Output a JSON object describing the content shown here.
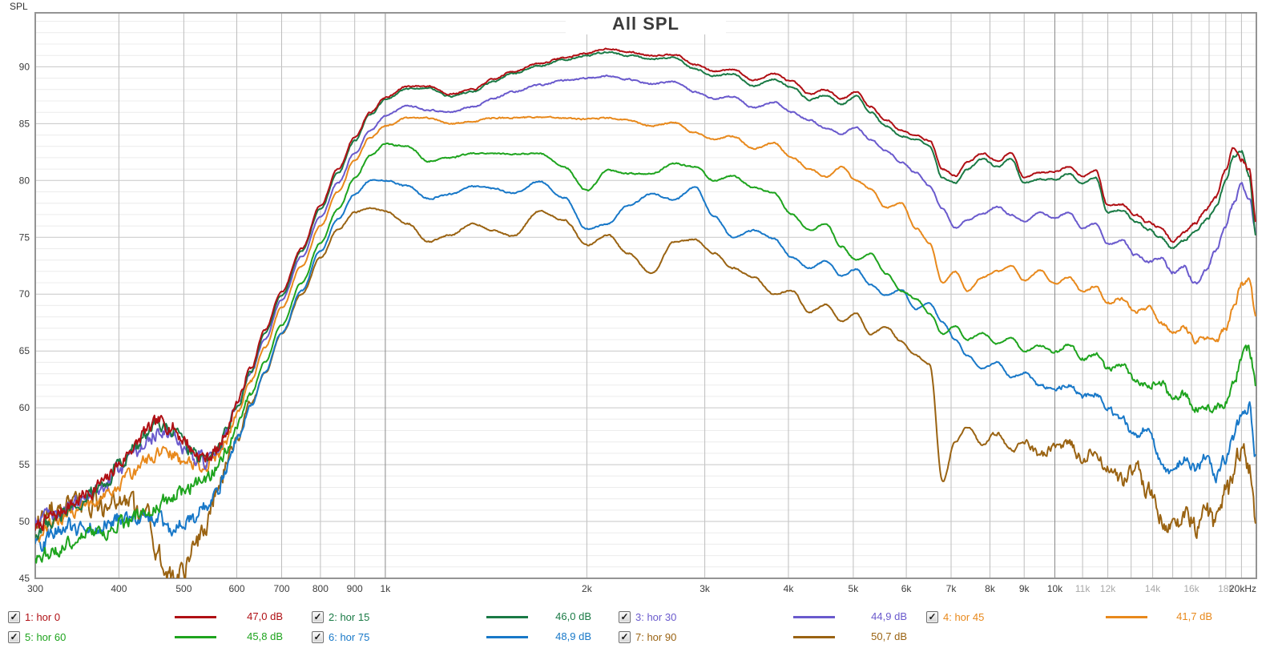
{
  "corner_label": "SPL",
  "chart_data": {
    "type": "line",
    "title": "All SPL",
    "ylabel": "SPL",
    "x_scale": "log",
    "xlim": [
      300,
      20000
    ],
    "ylim": [
      45,
      94.75
    ],
    "grid": "on",
    "legend_position": "bottom",
    "y_major_ticks": [
      45,
      50,
      55,
      60,
      65,
      70,
      75,
      80,
      85,
      90
    ],
    "x_ticks": [
      {
        "f": 300,
        "label": "300",
        "muted": false
      },
      {
        "f": 400,
        "label": "400",
        "muted": false
      },
      {
        "f": 500,
        "label": "500",
        "muted": false
      },
      {
        "f": 600,
        "label": "600",
        "muted": false
      },
      {
        "f": 700,
        "label": "700",
        "muted": false
      },
      {
        "f": 800,
        "label": "800",
        "muted": false
      },
      {
        "f": 900,
        "label": "900",
        "muted": false
      },
      {
        "f": 1000,
        "label": "1k",
        "muted": false
      },
      {
        "f": 2000,
        "label": "2k",
        "muted": false
      },
      {
        "f": 3000,
        "label": "3k",
        "muted": false
      },
      {
        "f": 4000,
        "label": "4k",
        "muted": false
      },
      {
        "f": 5000,
        "label": "5k",
        "muted": false
      },
      {
        "f": 6000,
        "label": "6k",
        "muted": false
      },
      {
        "f": 7000,
        "label": "7k",
        "muted": false
      },
      {
        "f": 8000,
        "label": "8k",
        "muted": false
      },
      {
        "f": 9000,
        "label": "9k",
        "muted": false
      },
      {
        "f": 10000,
        "label": "10k",
        "muted": false
      },
      {
        "f": 11000,
        "label": "11k",
        "muted": true
      },
      {
        "f": 12000,
        "label": "12k",
        "muted": true
      },
      {
        "f": 14000,
        "label": "14k",
        "muted": true
      },
      {
        "f": 16000,
        "label": "16k",
        "muted": true
      },
      {
        "f": 18000,
        "label": "18k",
        "muted": true
      },
      {
        "f": 20000,
        "label": "20kHz",
        "muted": false
      }
    ],
    "grid_freqs": [
      400,
      500,
      600,
      700,
      800,
      900,
      1000,
      2000,
      3000,
      4000,
      5000,
      6000,
      7000,
      8000,
      9000,
      10000,
      11000,
      12000,
      13000,
      14000,
      15000,
      16000,
      17000,
      18000,
      19000
    ],
    "dark_grid_freqs": [
      1000,
      10000
    ],
    "freqs": [
      300,
      320,
      340,
      360,
      380,
      400,
      420,
      440,
      460,
      480,
      500,
      520,
      540,
      560,
      580,
      600,
      630,
      660,
      700,
      750,
      800,
      850,
      900,
      950,
      1000,
      1080,
      1160,
      1250,
      1350,
      1450,
      1550,
      1700,
      1850,
      2000,
      2150,
      2300,
      2500,
      2700,
      2900,
      3100,
      3300,
      3550,
      3800,
      4050,
      4300,
      4550,
      4800,
      5050,
      5300,
      5600,
      5900,
      6200,
      6500,
      6800,
      7100,
      7400,
      7800,
      8200,
      8600,
      9000,
      9500,
      10000,
      10500,
      11000,
      11500,
      12000,
      12600,
      13200,
      13800,
      14400,
      15000,
      15600,
      16200,
      16800,
      17400,
      18000,
      18500,
      19000,
      19500,
      20000
    ],
    "series": [
      {
        "name": "hor 0",
        "color": "#b01015",
        "noise": [
          0.55,
          0.18,
          9000
        ],
        "spl": [
          49.5,
          50.5,
          51.5,
          52.5,
          53.5,
          55.0,
          56.5,
          58.0,
          58.8,
          58.3,
          57.2,
          56.0,
          55.6,
          56.2,
          58.0,
          60.5,
          63.5,
          66.8,
          70.2,
          74.0,
          77.8,
          81.0,
          83.8,
          86.0,
          87.3,
          88.3,
          88.3,
          87.6,
          88.0,
          88.9,
          89.6,
          90.3,
          90.8,
          91.2,
          91.6,
          91.3,
          91.0,
          91.1,
          90.2,
          89.6,
          89.8,
          88.8,
          89.4,
          88.7,
          87.6,
          88.0,
          87.2,
          87.8,
          86.5,
          85.3,
          84.4,
          84.0,
          83.5,
          81.0,
          80.4,
          81.6,
          82.4,
          81.7,
          82.4,
          80.3,
          80.7,
          80.8,
          81.2,
          80.4,
          80.9,
          77.8,
          77.9,
          77.0,
          76.3,
          75.8,
          74.6,
          75.4,
          76.2,
          77.4,
          78.6,
          81.0,
          83.0,
          81.8,
          81.0,
          76.3
        ]
      },
      {
        "name": "hor 15",
        "color": "#1a7a45",
        "noise": [
          0.55,
          0.18,
          9000
        ],
        "spl": [
          49.0,
          50.2,
          51.2,
          52.3,
          53.3,
          54.8,
          56.3,
          57.8,
          58.6,
          58.1,
          57.0,
          55.8,
          55.4,
          56.0,
          57.8,
          60.2,
          63.2,
          66.5,
          69.9,
          73.8,
          77.5,
          80.7,
          83.5,
          85.8,
          87.1,
          88.1,
          88.1,
          87.4,
          87.8,
          88.7,
          89.4,
          90.1,
          90.6,
          91.0,
          91.3,
          91.0,
          90.7,
          90.8,
          89.8,
          89.2,
          89.4,
          88.3,
          88.9,
          88.2,
          87.1,
          87.5,
          86.7,
          87.4,
          86.0,
          84.8,
          83.9,
          83.6,
          83.0,
          80.2,
          79.8,
          81.0,
          81.9,
          81.2,
          81.9,
          79.8,
          80.1,
          80.1,
          80.6,
          79.7,
          80.3,
          77.2,
          77.4,
          76.4,
          75.7,
          74.9,
          74.0,
          74.8,
          75.4,
          76.5,
          77.6,
          80.0,
          82.2,
          82.5,
          80.5,
          74.9
        ]
      },
      {
        "name": "hor 30",
        "color": "#6a5acd",
        "noise": [
          0.6,
          0.22,
          9000
        ],
        "spl": [
          49.8,
          50.6,
          51.4,
          52.3,
          53.2,
          54.5,
          55.8,
          57.2,
          58.0,
          57.6,
          56.6,
          55.6,
          55.3,
          56.0,
          57.8,
          60.2,
          63.1,
          66.0,
          69.5,
          73.3,
          76.8,
          79.8,
          82.4,
          84.4,
          85.7,
          86.6,
          86.2,
          86.0,
          86.5,
          87.2,
          87.8,
          88.4,
          88.8,
          89.0,
          89.2,
          88.9,
          88.5,
          88.7,
          87.8,
          87.2,
          87.4,
          86.4,
          86.9,
          86.0,
          85.3,
          84.6,
          84.1,
          84.7,
          83.6,
          82.6,
          81.6,
          80.7,
          79.5,
          77.5,
          75.8,
          76.5,
          77.1,
          77.7,
          77.0,
          76.4,
          77.2,
          76.7,
          77.2,
          75.8,
          76.2,
          74.4,
          74.7,
          73.4,
          72.8,
          73.2,
          71.9,
          72.4,
          70.9,
          72.0,
          73.8,
          76.0,
          78.0,
          79.6,
          78.6,
          75.4
        ]
      },
      {
        "name": "hor 45",
        "color": "#e8891c",
        "noise": [
          0.5,
          0.3,
          9000
        ],
        "spl": [
          48.5,
          49.8,
          50.8,
          51.6,
          52.3,
          53.2,
          54.3,
          55.4,
          56.1,
          55.9,
          55.3,
          54.9,
          54.9,
          55.6,
          57.2,
          59.5,
          62.4,
          65.3,
          68.8,
          72.5,
          76.0,
          79.0,
          81.8,
          83.8,
          84.8,
          85.5,
          85.5,
          85.0,
          85.2,
          85.5,
          85.5,
          85.6,
          85.5,
          85.4,
          85.5,
          85.3,
          84.8,
          85.1,
          84.2,
          83.6,
          83.9,
          82.8,
          83.3,
          82.0,
          81.0,
          80.3,
          81.2,
          80.0,
          79.3,
          77.6,
          78.0,
          75.8,
          74.5,
          71.0,
          72.0,
          70.3,
          71.5,
          72.0,
          72.5,
          71.2,
          72.1,
          70.9,
          71.5,
          70.2,
          70.7,
          69.2,
          69.6,
          68.4,
          68.8,
          67.4,
          66.7,
          67.1,
          65.9,
          66.2,
          65.8,
          67.0,
          68.8,
          70.8,
          71.5,
          67.7
        ]
      },
      {
        "name": "hor 60",
        "color": "#1ea41e",
        "noise": [
          0.6,
          0.45,
          8000
        ],
        "spl": [
          46.5,
          47.5,
          48.3,
          48.8,
          49.2,
          49.8,
          50.3,
          51.0,
          51.6,
          52.2,
          52.7,
          53.2,
          53.8,
          54.8,
          56.3,
          58.5,
          61.2,
          64.0,
          67.3,
          71.0,
          74.5,
          77.5,
          80.2,
          82.2,
          83.2,
          83.0,
          81.7,
          82.0,
          82.4,
          82.4,
          82.3,
          82.4,
          81.2,
          79.1,
          80.9,
          80.6,
          80.6,
          81.5,
          81.2,
          80.0,
          80.4,
          79.4,
          78.9,
          77.0,
          75.6,
          76.2,
          74.2,
          73.0,
          73.6,
          71.8,
          70.3,
          69.6,
          68.3,
          66.5,
          67.2,
          66.0,
          66.6,
          65.6,
          66.2,
          65.0,
          65.5,
          64.9,
          65.6,
          64.3,
          64.8,
          63.4,
          63.8,
          62.4,
          62.0,
          62.3,
          60.7,
          61.2,
          60.0,
          60.2,
          59.9,
          60.5,
          62.0,
          64.5,
          65.2,
          61.7
        ]
      },
      {
        "name": "hor 75",
        "color": "#1878c8",
        "noise": [
          0.7,
          0.6,
          7500
        ],
        "spl": [
          48.0,
          49.0,
          49.6,
          49.3,
          49.8,
          50.3,
          50.1,
          50.4,
          50.0,
          49.5,
          49.8,
          50.5,
          51.5,
          52.9,
          54.8,
          57.3,
          60.2,
          63.1,
          66.6,
          70.3,
          73.8,
          76.6,
          78.8,
          80.0,
          80.0,
          79.5,
          78.4,
          78.8,
          79.5,
          79.3,
          78.9,
          79.9,
          78.5,
          75.7,
          76.2,
          77.8,
          78.8,
          78.3,
          79.4,
          76.8,
          75.0,
          75.6,
          74.9,
          73.2,
          72.3,
          72.9,
          71.6,
          72.2,
          70.8,
          69.9,
          70.4,
          68.7,
          69.2,
          67.5,
          66.0,
          64.6,
          63.5,
          64.0,
          62.7,
          63.1,
          61.9,
          61.6,
          62.1,
          60.9,
          61.3,
          59.8,
          59.0,
          57.4,
          58.4,
          55.2,
          54.2,
          55.5,
          54.6,
          55.5,
          53.9,
          55.5,
          57.6,
          59.2,
          60.1,
          55.6
        ]
      },
      {
        "name": "hor 90",
        "color": "#9a6312",
        "noise": [
          0.95,
          1.15,
          7000
        ],
        "spl": [
          50.0,
          51.0,
          51.3,
          51.5,
          51.4,
          51.5,
          51.3,
          50.5,
          47.0,
          45.3,
          45.5,
          47.5,
          50.0,
          52.5,
          55.0,
          57.5,
          60.3,
          63.0,
          66.5,
          70.0,
          73.2,
          75.7,
          77.2,
          77.6,
          77.3,
          76.2,
          74.6,
          75.2,
          76.2,
          75.6,
          75.1,
          77.3,
          76.5,
          74.3,
          75.2,
          73.6,
          71.8,
          74.6,
          74.8,
          73.6,
          72.3,
          71.5,
          70.0,
          70.3,
          68.4,
          69.1,
          67.6,
          68.3,
          66.5,
          67.1,
          65.8,
          64.6,
          63.8,
          53.5,
          57.0,
          58.3,
          56.8,
          57.8,
          56.3,
          57.0,
          55.8,
          56.4,
          57.2,
          55.4,
          56.3,
          54.4,
          53.5,
          54.7,
          52.6,
          50.5,
          49.0,
          50.8,
          49.4,
          51.2,
          49.8,
          52.2,
          54.2,
          56.3,
          55.0,
          50.2
        ]
      }
    ]
  },
  "legend": {
    "entries": [
      {
        "label": "1: hor 0",
        "value": "47,0 dB",
        "color": "#b01015",
        "checked": true,
        "row": 0,
        "col": 0
      },
      {
        "label": "2: hor 15",
        "value": "46,0 dB",
        "color": "#1a7a45",
        "checked": true,
        "row": 0,
        "col": 1
      },
      {
        "label": "3: hor 30",
        "value": "44,9 dB",
        "color": "#6a5acd",
        "checked": true,
        "row": 0,
        "col": 2
      },
      {
        "label": "4: hor 45",
        "value": "41,7 dB",
        "color": "#e8891c",
        "checked": true,
        "row": 0,
        "col": 3
      },
      {
        "label": "5: hor 60",
        "value": "45,8 dB",
        "color": "#1ea41e",
        "checked": true,
        "row": 1,
        "col": 0
      },
      {
        "label": "6: hor 75",
        "value": "48,9 dB",
        "color": "#1878c8",
        "checked": true,
        "row": 1,
        "col": 1
      },
      {
        "label": "7: hor 90",
        "value": "50,7 dB",
        "color": "#9a6312",
        "checked": true,
        "row": 1,
        "col": 2
      }
    ],
    "check_glyph": "✓"
  }
}
